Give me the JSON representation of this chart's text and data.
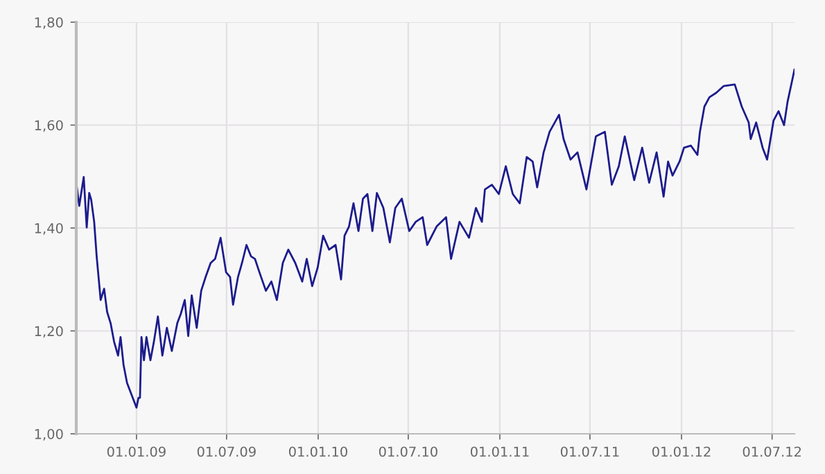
{
  "chart_data": {
    "type": "line",
    "x": [
      "2008-09-02",
      "2008-09-08",
      "2008-09-17",
      "2008-09-23",
      "2008-09-28",
      "2008-10-02",
      "2008-10-08",
      "2008-10-13",
      "2008-10-21",
      "2008-10-28",
      "2008-11-03",
      "2008-11-10",
      "2008-11-17",
      "2008-11-25",
      "2008-11-30",
      "2008-12-06",
      "2008-12-13",
      "2009-01-01",
      "2009-01-05",
      "2009-01-08",
      "2009-01-11",
      "2009-01-16",
      "2009-01-21",
      "2009-01-29",
      "2009-02-05",
      "2009-02-13",
      "2009-02-22",
      "2009-03-03",
      "2009-03-13",
      "2009-03-24",
      "2009-03-31",
      "2009-04-08",
      "2009-04-15",
      "2009-04-22",
      "2009-05-02",
      "2009-05-11",
      "2009-05-20",
      "2009-05-30",
      "2009-06-08",
      "2009-06-19",
      "2009-06-30",
      "2009-07-08",
      "2009-07-14",
      "2009-07-24",
      "2009-08-01",
      "2009-08-10",
      "2009-08-19",
      "2009-08-27",
      "2009-09-05",
      "2009-09-18",
      "2009-09-29",
      "2009-10-10",
      "2009-10-22",
      "2009-11-02",
      "2009-11-16",
      "2009-11-30",
      "2009-12-09",
      "2009-12-20",
      "2009-12-31",
      "2010-01-11",
      "2010-01-23",
      "2010-02-05",
      "2010-02-16",
      "2010-02-23",
      "2010-03-04",
      "2010-03-13",
      "2010-03-23",
      "2010-04-01",
      "2010-04-10",
      "2010-04-20",
      "2010-04-29",
      "2010-05-12",
      "2010-05-25",
      "2010-06-05",
      "2010-06-18",
      "2010-07-03",
      "2010-07-16",
      "2010-07-30",
      "2010-08-08",
      "2010-08-27",
      "2010-09-15",
      "2010-09-25",
      "2010-10-12",
      "2010-10-31",
      "2010-11-14",
      "2010-11-26",
      "2010-12-02",
      "2010-12-16",
      "2010-12-30",
      "2011-01-13",
      "2011-01-27",
      "2011-02-10",
      "2011-02-24",
      "2011-03-08",
      "2011-03-17",
      "2011-03-30",
      "2011-04-11",
      "2011-04-30",
      "2011-05-09",
      "2011-05-23",
      "2011-06-06",
      "2011-06-24",
      "2011-07-13",
      "2011-07-31",
      "2011-08-14",
      "2011-08-28",
      "2011-09-09",
      "2011-09-28",
      "2011-10-14",
      "2011-10-28",
      "2011-11-12",
      "2011-11-26",
      "2011-12-05",
      "2011-12-14",
      "2011-12-28",
      "2012-01-06",
      "2012-01-20",
      "2012-02-02",
      "2012-02-07",
      "2012-02-16",
      "2012-02-26",
      "2012-03-11",
      "2012-03-26",
      "2012-04-17",
      "2012-05-01",
      "2012-05-15",
      "2012-05-19",
      "2012-05-30",
      "2012-06-12",
      "2012-06-21",
      "2012-07-04",
      "2012-07-14",
      "2012-07-25",
      "2012-08-01",
      "2012-08-15"
    ],
    "series": [
      {
        "color": "#1c1c8c",
        "values": [
          1.488,
          1.443,
          1.499,
          1.401,
          1.468,
          1.455,
          1.412,
          1.345,
          1.26,
          1.282,
          1.237,
          1.215,
          1.179,
          1.152,
          1.188,
          1.134,
          1.099,
          1.051,
          1.07,
          1.07,
          1.188,
          1.143,
          1.188,
          1.143,
          1.179,
          1.228,
          1.152,
          1.206,
          1.161,
          1.215,
          1.233,
          1.26,
          1.19,
          1.269,
          1.206,
          1.278,
          1.305,
          1.332,
          1.34,
          1.381,
          1.314,
          1.305,
          1.251,
          1.305,
          1.332,
          1.367,
          1.345,
          1.34,
          1.314,
          1.278,
          1.296,
          1.26,
          1.332,
          1.358,
          1.332,
          1.296,
          1.34,
          1.287,
          1.323,
          1.385,
          1.358,
          1.367,
          1.3,
          1.385,
          1.403,
          1.448,
          1.394,
          1.457,
          1.466,
          1.394,
          1.468,
          1.439,
          1.372,
          1.439,
          1.457,
          1.394,
          1.412,
          1.421,
          1.367,
          1.403,
          1.421,
          1.34,
          1.412,
          1.381,
          1.439,
          1.412,
          1.475,
          1.484,
          1.466,
          1.52,
          1.466,
          1.448,
          1.538,
          1.529,
          1.479,
          1.547,
          1.587,
          1.62,
          1.573,
          1.533,
          1.547,
          1.475,
          1.578,
          1.587,
          1.484,
          1.52,
          1.578,
          1.493,
          1.556,
          1.488,
          1.547,
          1.461,
          1.529,
          1.502,
          1.529,
          1.556,
          1.56,
          1.542,
          1.587,
          1.636,
          1.654,
          1.663,
          1.676,
          1.679,
          1.636,
          1.605,
          1.573,
          1.605,
          1.556,
          1.533,
          1.609,
          1.627,
          1.6,
          1.645,
          1.708
        ]
      }
    ],
    "xlim": [
      "2008-09-02",
      "2012-08-15"
    ],
    "xticks": [
      {
        "value": "2009-01-01",
        "label": "01.01.09"
      },
      {
        "value": "2009-07-01",
        "label": "01.07.09"
      },
      {
        "value": "2010-01-01",
        "label": "01.01.10"
      },
      {
        "value": "2010-07-01",
        "label": "01.07.10"
      },
      {
        "value": "2011-01-01",
        "label": "01.01.11"
      },
      {
        "value": "2011-07-01",
        "label": "01.07.11"
      },
      {
        "value": "2012-01-01",
        "label": "01.01.12"
      },
      {
        "value": "2012-07-01",
        "label": "01.07.12"
      }
    ],
    "ylim": [
      1.0,
      1.8
    ],
    "yticks": [
      {
        "value": 1.0,
        "label": "1,00"
      },
      {
        "value": 1.2,
        "label": "1,20"
      },
      {
        "value": 1.4,
        "label": "1,40"
      },
      {
        "value": 1.6,
        "label": "1,60"
      },
      {
        "value": 1.8,
        "label": "1,80"
      }
    ],
    "grid": true,
    "legend": false,
    "marker": "none",
    "line_style": "solid"
  }
}
